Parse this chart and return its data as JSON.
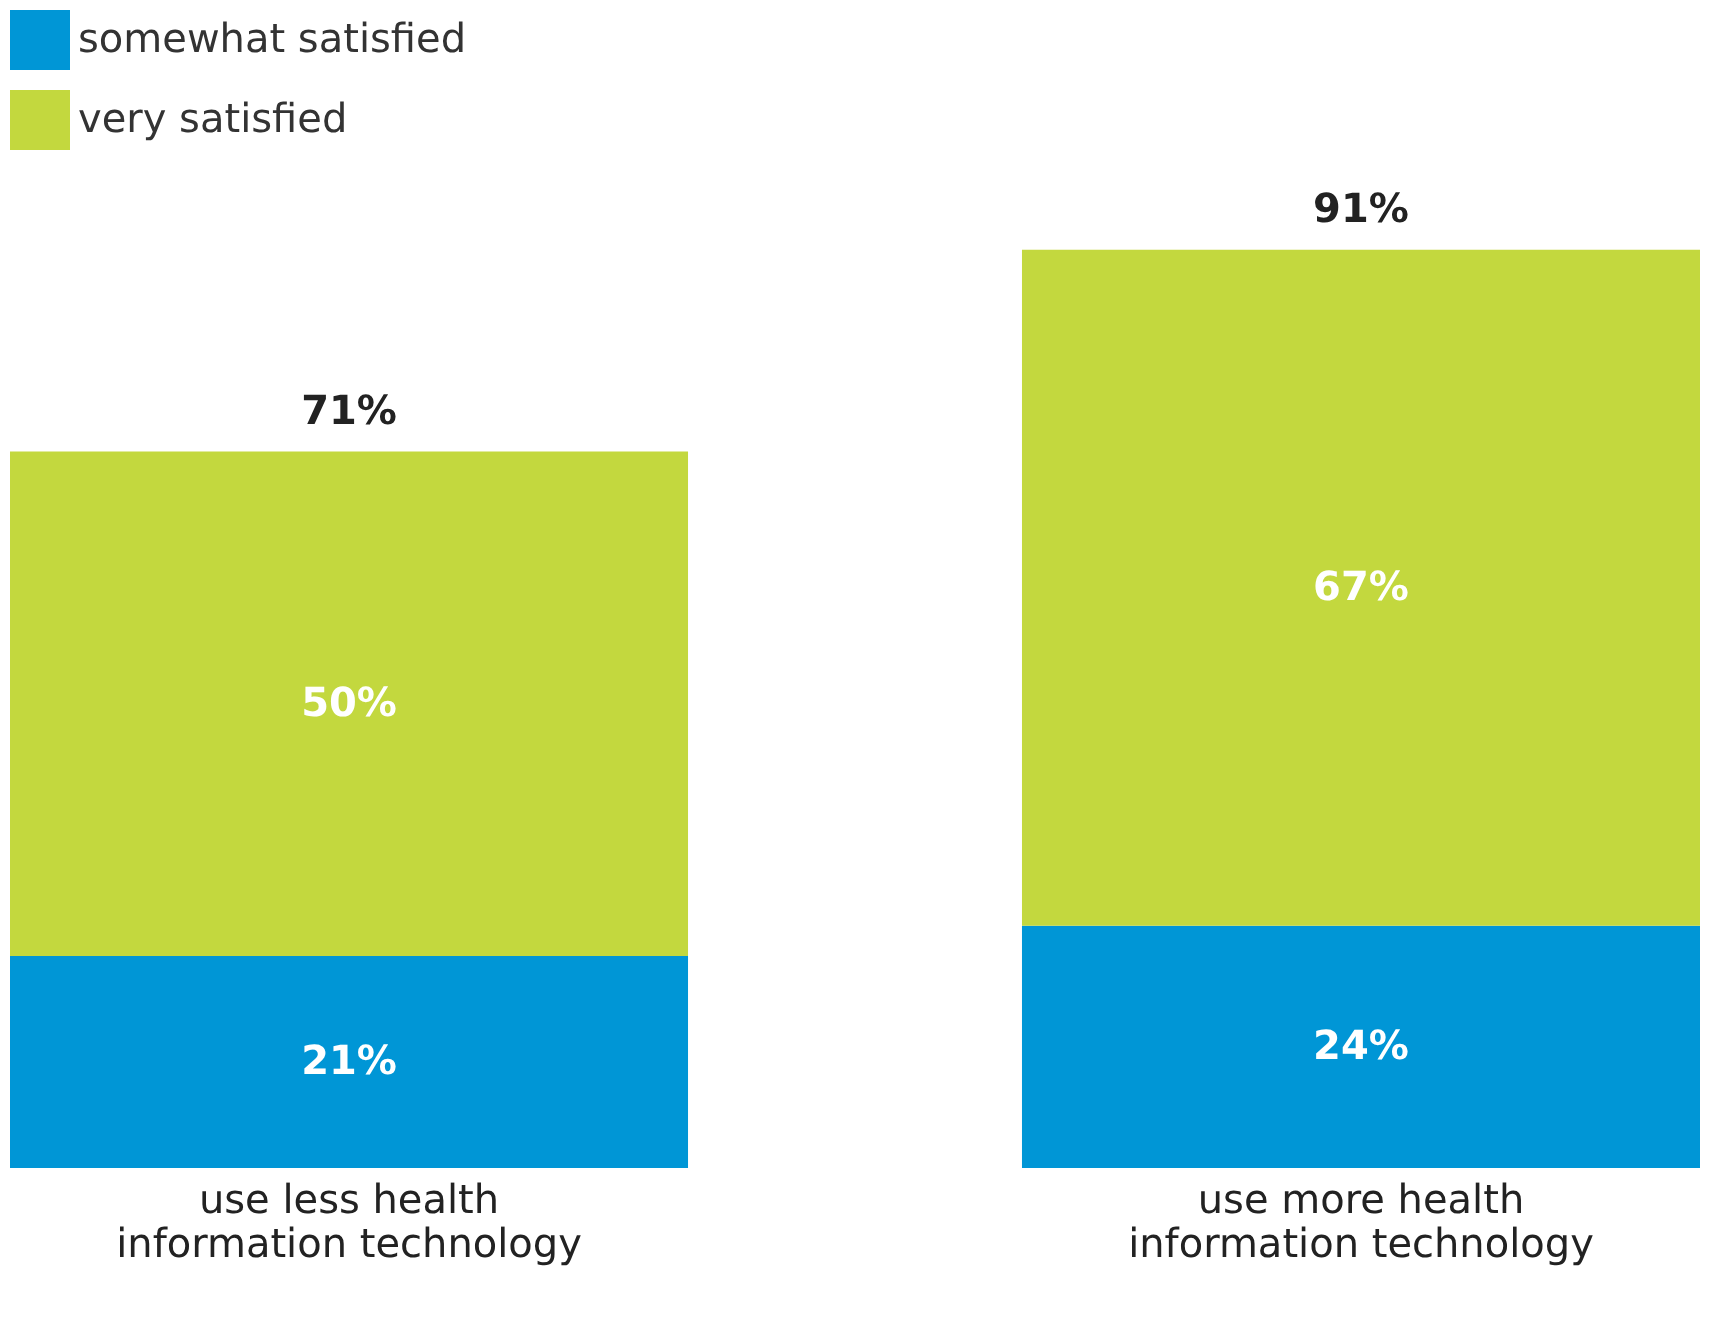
{
  "chart_data": {
    "type": "bar",
    "stacked": true,
    "categories": [
      "use less health information technology",
      "use more health information technology"
    ],
    "series": [
      {
        "name": "somewhat satisfied",
        "color": "#0096d6",
        "values": [
          21,
          24
        ],
        "value_labels": [
          "21%",
          "24%"
        ]
      },
      {
        "name": "very satisfied",
        "color": "#c3d83e",
        "values": [
          50,
          67
        ],
        "value_labels": [
          "50%",
          "67%"
        ]
      }
    ],
    "totals": [
      "71%",
      "91%"
    ],
    "legend": "top left",
    "grid": false
  }
}
